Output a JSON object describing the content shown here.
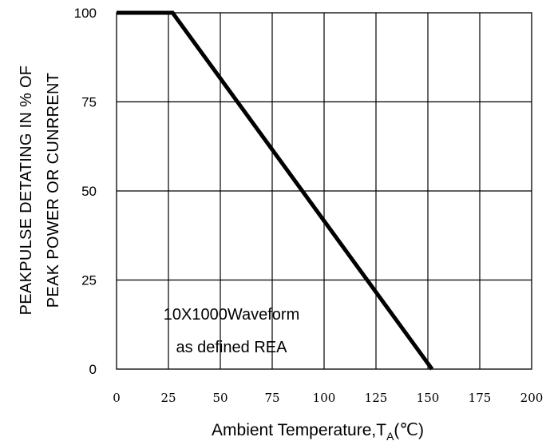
{
  "chart_data": {
    "type": "line",
    "x": [
      0,
      27,
      152
    ],
    "series": [
      {
        "values": [
          100,
          100,
          0
        ]
      }
    ],
    "xlim": [
      0,
      200
    ],
    "ylim": [
      0,
      100
    ],
    "xticks": [
      "0",
      "25",
      "50",
      "75",
      "100",
      "125",
      "150",
      "175",
      "200"
    ],
    "yticks": [
      "0",
      "25",
      "50",
      "75",
      "100"
    ],
    "ylabel_line1": "PEAKPULSE DETATING IN % OF",
    "ylabel_line2": "PEAK POWER OR CUNRRENT",
    "xlabel_prefix": "Ambient Temperature,T",
    "xlabel_sub": "A",
    "xlabel_suffix": "(℃)",
    "annotation_line1": "10X1000Waveform",
    "annotation_line2": "as defined REA",
    "grid": true,
    "line_color": "#000000"
  }
}
